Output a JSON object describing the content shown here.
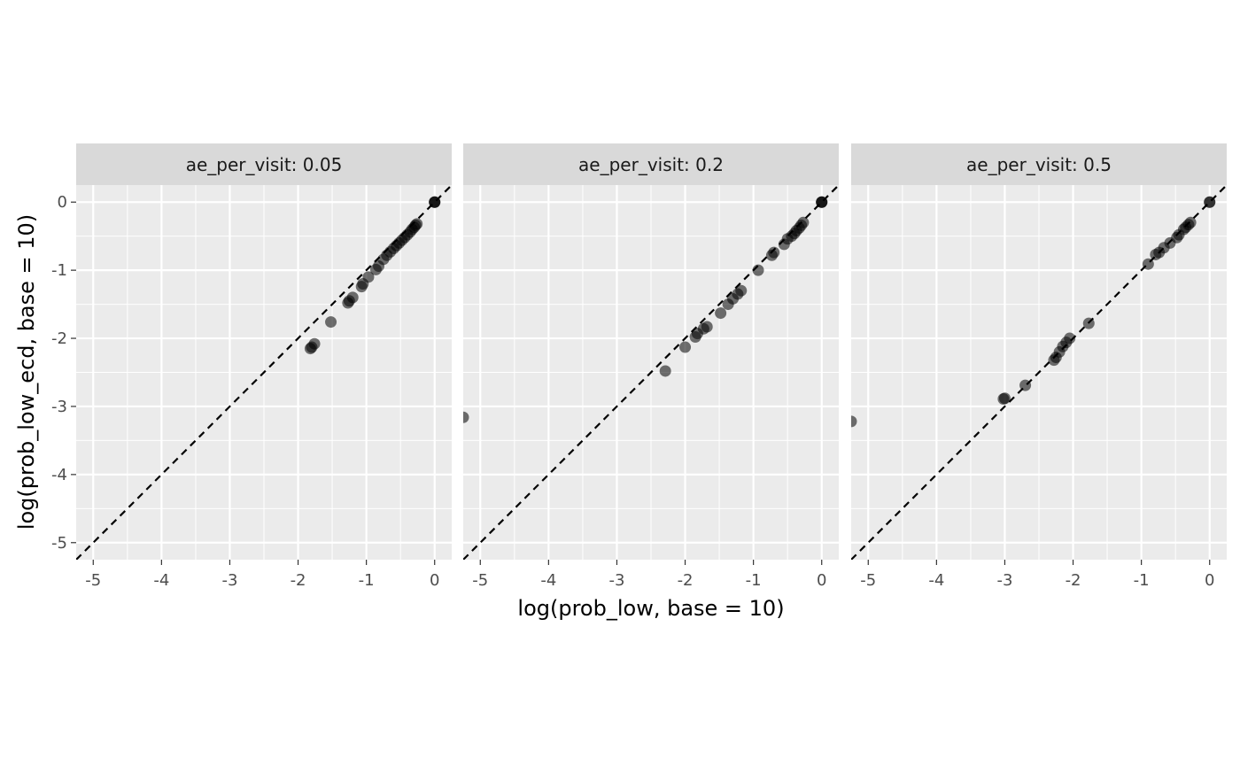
{
  "chart_data": {
    "type": "scatter",
    "facet_variable_label": "ae_per_visit",
    "xlabel": "log(prob_low, base = 10)",
    "ylabel": "log(prob_low_ecd, base = 10)",
    "xlim": [
      -5.25,
      0.25
    ],
    "ylim": [
      -5.25,
      0.25
    ],
    "x_ticks": [
      -5,
      -4,
      -3,
      -2,
      -1,
      0
    ],
    "y_ticks": [
      -5,
      -4,
      -3,
      -2,
      -1,
      0
    ],
    "x_tick_labels": [
      "-5",
      "-4",
      "-3",
      "-2",
      "-1",
      "0"
    ],
    "y_tick_labels": [
      "-5",
      "-4",
      "-3",
      "-2",
      "-1",
      "0"
    ],
    "reference_line": {
      "slope": 1,
      "intercept": 0,
      "style": "dashed",
      "color": "#000000"
    },
    "grid": true,
    "colors": {
      "panel_background": "#ebebeb",
      "strip_background": "#d9d9d9",
      "grid": "#ffffff",
      "point": "#000000"
    },
    "point_alpha": 0.55,
    "panels": [
      {
        "strip_label": "ae_per_visit: 0.05",
        "points": [
          [
            0,
            0
          ],
          [
            0,
            0
          ],
          [
            0,
            0
          ],
          [
            -0.26,
            -0.32
          ],
          [
            -0.28,
            -0.34
          ],
          [
            -0.3,
            -0.37
          ],
          [
            -0.33,
            -0.4
          ],
          [
            -0.36,
            -0.44
          ],
          [
            -0.4,
            -0.48
          ],
          [
            -0.44,
            -0.52
          ],
          [
            -0.48,
            -0.56
          ],
          [
            -0.52,
            -0.6
          ],
          [
            -0.56,
            -0.64
          ],
          [
            -0.6,
            -0.68
          ],
          [
            -0.65,
            -0.73
          ],
          [
            -0.7,
            -0.78
          ],
          [
            -0.75,
            -0.84
          ],
          [
            -0.82,
            -0.94
          ],
          [
            -0.86,
            -0.99
          ],
          [
            -0.97,
            -1.1
          ],
          [
            -1.05,
            -1.2
          ],
          [
            -1.07,
            -1.24
          ],
          [
            -1.2,
            -1.4
          ],
          [
            -1.25,
            -1.45
          ],
          [
            -1.27,
            -1.48
          ],
          [
            -1.52,
            -1.76
          ],
          [
            -1.76,
            -2.08
          ],
          [
            -1.8,
            -2.13
          ],
          [
            -1.82,
            -2.15
          ]
        ]
      },
      {
        "strip_label": "ae_per_visit: 0.2",
        "points": [
          [
            0,
            0
          ],
          [
            0,
            0
          ],
          [
            0,
            0
          ],
          [
            -0.27,
            -0.3
          ],
          [
            -0.3,
            -0.34
          ],
          [
            -0.33,
            -0.38
          ],
          [
            -0.37,
            -0.42
          ],
          [
            -0.4,
            -0.46
          ],
          [
            -0.44,
            -0.5
          ],
          [
            -0.5,
            -0.54
          ],
          [
            -0.55,
            -0.62
          ],
          [
            -0.7,
            -0.74
          ],
          [
            -0.73,
            -0.78
          ],
          [
            -0.93,
            -1.0
          ],
          [
            -1.18,
            -1.3
          ],
          [
            -1.23,
            -1.35
          ],
          [
            -1.3,
            -1.42
          ],
          [
            -1.37,
            -1.5
          ],
          [
            -1.48,
            -1.63
          ],
          [
            -1.68,
            -1.83
          ],
          [
            -1.73,
            -1.86
          ],
          [
            -1.82,
            -1.93
          ],
          [
            -1.85,
            -1.98
          ],
          [
            -2.0,
            -2.13
          ],
          [
            -2.29,
            -2.48
          ],
          [
            -5.25,
            -3.16
          ]
        ]
      },
      {
        "strip_label": "ae_per_visit: 0.5",
        "points": [
          [
            0,
            0
          ],
          [
            0,
            0
          ],
          [
            -0.28,
            -0.3
          ],
          [
            -0.31,
            -0.33
          ],
          [
            -0.35,
            -0.37
          ],
          [
            -0.38,
            -0.4
          ],
          [
            -0.45,
            -0.48
          ],
          [
            -0.48,
            -0.52
          ],
          [
            -0.58,
            -0.6
          ],
          [
            -0.67,
            -0.67
          ],
          [
            -0.74,
            -0.74
          ],
          [
            -0.79,
            -0.77
          ],
          [
            -0.9,
            -0.91
          ],
          [
            -1.77,
            -1.78
          ],
          [
            -2.05,
            -2.0
          ],
          [
            -2.1,
            -2.06
          ],
          [
            -2.15,
            -2.12
          ],
          [
            -2.2,
            -2.2
          ],
          [
            -2.25,
            -2.28
          ],
          [
            -2.28,
            -2.32
          ],
          [
            -2.7,
            -2.69
          ],
          [
            -3.0,
            -2.88
          ],
          [
            -3.02,
            -2.89
          ],
          [
            -5.25,
            -3.22
          ]
        ]
      }
    ]
  }
}
